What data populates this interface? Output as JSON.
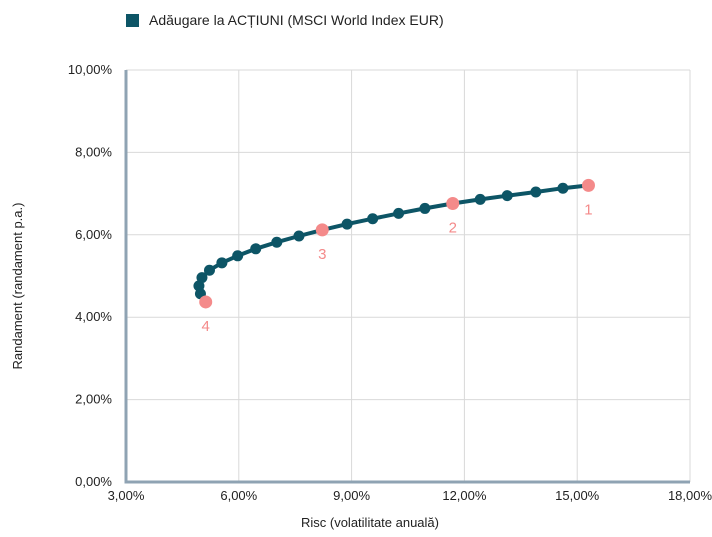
{
  "chart_data": {
    "type": "line",
    "title": "",
    "xlabel": "Risc (volatilitate anuală)",
    "ylabel": "Randament (randament p.a.)",
    "xlim": [
      3,
      18
    ],
    "ylim": [
      0,
      10
    ],
    "x_ticks": [
      "3,00%",
      "6,00%",
      "9,00%",
      "12,00%",
      "15,00%",
      "18,00%"
    ],
    "y_ticks": [
      "0,00%",
      "2,00%",
      "4,00%",
      "6,00%",
      "8,00%",
      "10,00%"
    ],
    "grid": true,
    "legend_position": "top-left",
    "series": [
      {
        "name": "Adăugare la ACȚIUNI (MSCI World Index EUR)",
        "color": "#0d5566",
        "points": [
          {
            "x": 5.12,
            "y": 4.37
          },
          {
            "x": 4.98,
            "y": 4.57
          },
          {
            "x": 4.94,
            "y": 4.76
          },
          {
            "x": 5.02,
            "y": 4.96
          },
          {
            "x": 5.22,
            "y": 5.14
          },
          {
            "x": 5.55,
            "y": 5.32
          },
          {
            "x": 5.97,
            "y": 5.49
          },
          {
            "x": 6.45,
            "y": 5.66
          },
          {
            "x": 7.01,
            "y": 5.82
          },
          {
            "x": 7.6,
            "y": 5.97
          },
          {
            "x": 8.22,
            "y": 6.12
          },
          {
            "x": 8.88,
            "y": 6.26
          },
          {
            "x": 9.56,
            "y": 6.39
          },
          {
            "x": 10.25,
            "y": 6.52
          },
          {
            "x": 10.95,
            "y": 6.64
          },
          {
            "x": 11.69,
            "y": 6.76
          },
          {
            "x": 12.42,
            "y": 6.86
          },
          {
            "x": 13.14,
            "y": 6.95
          },
          {
            "x": 13.9,
            "y": 7.04
          },
          {
            "x": 14.62,
            "y": 7.13
          },
          {
            "x": 15.3,
            "y": 7.2
          }
        ]
      }
    ],
    "highlights": {
      "color": "#f48a8a",
      "points": [
        {
          "label": "1",
          "x": 15.3,
          "y": 7.2
        },
        {
          "label": "2",
          "x": 11.69,
          "y": 6.76
        },
        {
          "label": "3",
          "x": 8.22,
          "y": 6.12
        },
        {
          "label": "4",
          "x": 5.12,
          "y": 4.37
        }
      ]
    }
  }
}
